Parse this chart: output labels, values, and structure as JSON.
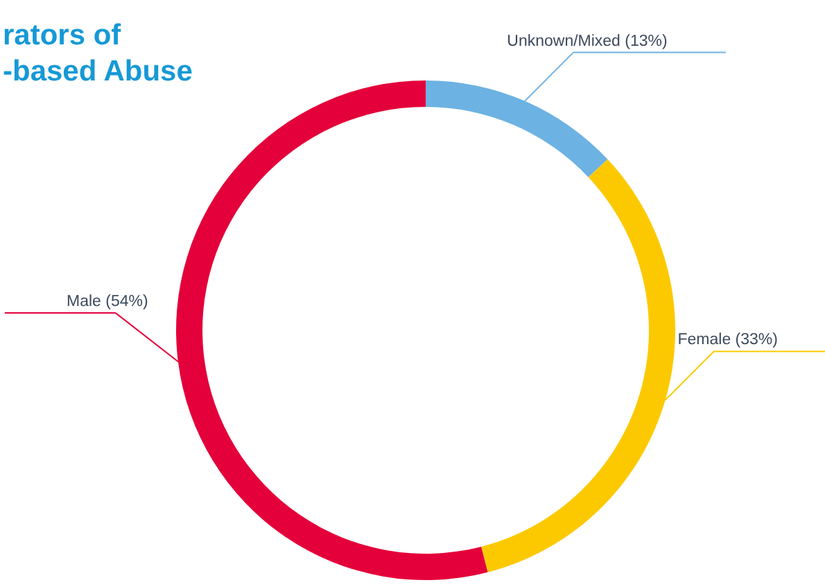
{
  "chart_data": {
    "type": "donut",
    "title": "rators of\n-based Abuse",
    "categories": [
      "Unknown/Mixed (13%)",
      "Female (33%)",
      "Male (54%)"
    ],
    "values": [
      13,
      33,
      54
    ],
    "colors": [
      "#6cb2e2",
      "#fcc900",
      "#e4003a"
    ],
    "legend": false
  }
}
